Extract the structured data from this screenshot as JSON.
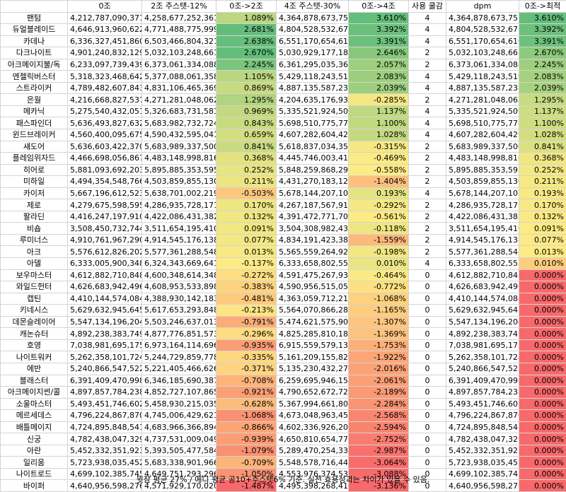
{
  "headers": [
    "",
    "0조",
    "2조 주스탯-12%",
    "0조->2조",
    "4조 주스탯-30%",
    "0조->4조",
    "사용 쿨감",
    "dpm",
    "0조->최적"
  ],
  "rows": [
    [
      "팬텀",
      "4,212,787,090,371",
      "4,258,677,252,361",
      "1.089%",
      "4,364,878,673,757",
      "3.610%",
      "4",
      "4,364,878,673,757",
      "3.610%"
    ],
    [
      "듀얼블레이드",
      "4,646,913,960,622",
      "4,771,488,775,999",
      "2.681%",
      "4,804,528,532,671",
      "3.392%",
      "4",
      "4,804,528,532,671",
      "3.392%"
    ],
    [
      "카데나",
      "6,336,327,451,860",
      "6,503,466,804,321",
      "2.638%",
      "6,551,170,654,610",
      "3.391%",
      "4",
      "6,551,170,654,610",
      "3.391%"
    ],
    [
      "다크나이트",
      "4,901,240,832,129",
      "5,032,103,248,661",
      "2.670%",
      "5,030,929,177,183",
      "2.646%",
      "2",
      "5,032,103,248,661",
      "2.670%"
    ],
    [
      "아크메이지불/독",
      "6,233,097,739,439",
      "6,373,061,334,088",
      "2.245%",
      "6,361,295,035,361",
      "2.057%",
      "2",
      "6,373,061,334,088",
      "2.245%"
    ],
    [
      "엔젤릭버스터",
      "5,318,323,468,642",
      "5,377,088,061,358",
      "1.105%",
      "5,429,118,243,519",
      "2.083%",
      "4",
      "5,429,118,243,519",
      "2.083%"
    ],
    [
      "스트라이커",
      "4,789,482,607,843",
      "4,831,106,465,369",
      "0.869%",
      "4,887,135,587,238",
      "2.039%",
      "4",
      "4,887,135,587,238",
      "2.039%"
    ],
    [
      "은월",
      "4,216,668,827,537",
      "4,271,281,048,062",
      "1.295%",
      "4,204,635,176,931",
      "-0.285%",
      "2",
      "4,271,281,048,062",
      "1.295%"
    ],
    [
      "메카닉",
      "5,275,540,432,051",
      "5,326,683,731,581",
      "0.969%",
      "5,335,521,924,509",
      "1.137%",
      "4",
      "5,335,521,924,509",
      "1.137%"
    ],
    [
      "패스파인더",
      "5,636,493,827,632",
      "5,683,982,732,724",
      "0.843%",
      "5,698,510,775,778",
      "1.100%",
      "4",
      "5,698,510,775,778",
      "1.100%"
    ],
    [
      "윈드브레이커",
      "4,560,400,095,675",
      "4,590,432,595,041",
      "0.659%",
      "4,607,282,604,429",
      "1.028%",
      "4",
      "4,607,282,604,429",
      "1.028%"
    ],
    [
      "섀도어",
      "5,636,603,422,370",
      "5,683,989,337,500",
      "0.841%",
      "5,618,837,034,354",
      "-0.315%",
      "2",
      "5,683,989,337,500",
      "0.841%"
    ],
    [
      "플레임위자드",
      "4,466,698,056,867",
      "4,483,148,998,816",
      "0.368%",
      "4,445,746,003,410",
      "-0.469%",
      "2",
      "4,483,148,998,816",
      "0.368%"
    ],
    [
      "히어로",
      "5,881,093,692,203",
      "5,895,885,353,595",
      "0.252%",
      "5,848,259,868,290",
      "-0.558%",
      "2",
      "5,895,885,353,595",
      "0.252%"
    ],
    [
      "미하일",
      "4,494,354,548,766",
      "4,503,859,855,130",
      "0.211%",
      "4,431,270,183,128",
      "-1.404%",
      "2",
      "4,503,859,855,130",
      "0.211%"
    ],
    [
      "카이저",
      "5,667,196,612,523",
      "5,638,701,002,219",
      "-0.503%",
      "5,678,144,207,107",
      "0.193%",
      "4",
      "5,678,144,207,107",
      "0.193%"
    ],
    [
      "제로",
      "4,279,675,598,595",
      "4,286,935,728,171",
      "0.170%",
      "4,267,187,567,916",
      "-0.292%",
      "2",
      "4,286,935,728,171",
      "0.170%"
    ],
    [
      "팔라딘",
      "4,416,247,197,910",
      "4,422,086,431,382",
      "0.132%",
      "4,391,472,771,709",
      "-0.561%",
      "2",
      "4,422,086,431,382",
      "0.132%"
    ],
    [
      "비숍",
      "3,508,450,732,744",
      "3,511,654,195,410",
      "0.091%",
      "3,504,308,982,437",
      "-0.118%",
      "2",
      "3,511,654,195,410",
      "0.091%"
    ],
    [
      "루미너스",
      "4,910,761,967,290",
      "4,914,545,176,138",
      "0.077%",
      "4,834,191,423,384",
      "-1.559%",
      "2",
      "4,914,545,176,138",
      "0.077%"
    ],
    [
      "아크",
      "5,576,612,826,202",
      "5,577,361,288,548",
      "0.013%",
      "5,565,559,264,921",
      "-0.198%",
      "2",
      "5,577,361,288,548",
      "0.013%"
    ],
    [
      "아델",
      "6,333,005,900,348",
      "6,324,343,669,641",
      "-0.137%",
      "6,333,658,802,555",
      "0.010%",
      "4",
      "6,333,658,802,555",
      "0.010%"
    ],
    [
      "보우마스터",
      "4,612,882,710,848",
      "4,600,348,614,348",
      "-0.272%",
      "4,591,475,267,934",
      "-0.464%",
      "0",
      "4,612,882,710,848",
      "0.000%"
    ],
    [
      "와일드헌터",
      "4,626,683,942,496",
      "4,608,953,533,898",
      "-0.383%",
      "4,590,956,515,051",
      "-0.772%",
      "0",
      "4,626,683,942,496",
      "0.000%"
    ],
    [
      "캡틴",
      "4,410,144,574,084",
      "4,388,930,142,183",
      "-0.481%",
      "4,363,059,712,211",
      "-1.068%",
      "0",
      "4,410,144,574,084",
      "0.000%"
    ],
    [
      "키네시스",
      "5,629,632,945,645",
      "5,617,653,293,848",
      "-0.213%",
      "5,564,070,866,282",
      "-1.165%",
      "0",
      "5,629,632,945,645",
      "0.000%"
    ],
    [
      "데몬슬레이어",
      "5,547,134,196,204",
      "5,503,246,637,013",
      "-0.791%",
      "5,474,621,575,907",
      "-1.307%",
      "0",
      "5,547,134,196,204",
      "0.000%"
    ],
    [
      "캐논슈터",
      "4,892,238,383,749",
      "4,877,776,851,573",
      "-0.296%",
      "4,825,285,810,185",
      "-1.369%",
      "0",
      "4,892,238,383,749",
      "0.000%"
    ],
    [
      "호영",
      "7,038,981,695,175",
      "6,973,164,114,696",
      "-0.935%",
      "6,915,559,579,139",
      "-1.753%",
      "0",
      "7,038,981,695,175",
      "0.000%"
    ],
    [
      "나이트워커",
      "5,262,358,101,724",
      "5,244,729,859,778",
      "-0.335%",
      "5,161,209,155,825",
      "-1.922%",
      "0",
      "5,262,358,101,724",
      "0.000%"
    ],
    [
      "에반",
      "5,240,866,547,522",
      "5,221,405,466,626",
      "-0.371%",
      "5,135,230,432,274",
      "-2.016%",
      "0",
      "5,240,866,547,522",
      "0.000%"
    ],
    [
      "블래스터",
      "6,391,409,470,998",
      "6,346,185,690,387",
      "-0.708%",
      "6,259,695,946,152",
      "-2.061%",
      "0",
      "6,391,409,470,998",
      "0.000%"
    ],
    [
      "아크메이지썬/콜",
      "4,897,857,784,238",
      "4,852,727,107,865",
      "-0.921%",
      "4,790,652,672,725",
      "-2.189%",
      "0",
      "4,897,857,784,238",
      "0.000%"
    ],
    [
      "소울마스터",
      "5,493,451,746,602",
      "5,458,930,215,035",
      "-0.628%",
      "5,367,994,661,803",
      "-2.284%",
      "0",
      "5,493,451,746,602",
      "0.000%"
    ],
    [
      "메르세데스",
      "4,796,224,867,870",
      "4,745,006,429,621",
      "-1.068%",
      "4,673,048,963,458",
      "-2.568%",
      "0",
      "4,796,224,867,870",
      "0.000%"
    ],
    [
      "배틀메이지",
      "4,724,895,848,541",
      "4,683,966,366,894",
      "-0.866%",
      "4,602,336,926,201",
      "-2.594%",
      "0",
      "4,724,895,848,541",
      "0.000%"
    ],
    [
      "신궁",
      "4,782,438,047,329",
      "4,737,531,009,049",
      "-0.939%",
      "4,650,810,654,771",
      "-2.752%",
      "0",
      "4,782,438,047,329",
      "0.000%"
    ],
    [
      "아란",
      "5,452,332,351,923",
      "5,393,505,477,584",
      "-1.079%",
      "5,289,470,254,334",
      "-2.987%",
      "0",
      "5,452,332,351,923",
      "0.000%"
    ],
    [
      "일리움",
      "5,723,938,035,452",
      "5,683,338,901,966",
      "-0.709%",
      "5,548,578,716,440",
      "-3.064%",
      "0",
      "5,723,938,035,452",
      "0.000%"
    ],
    [
      "나이트로드",
      "4,699,102,385,745",
      "4,649,751,293,296",
      "-1.050%",
      "4,553,976,374,535",
      "-3.088%",
      "0",
      "4,699,102,385,745",
      "0.000%"
    ],
    [
      "바이퍼",
      "4,640,956,598,276",
      "4,571,929,170,020",
      "-1.487%",
      "4,495,398,268,412",
      "-3.136%",
      "0",
      "4,640,956,598,276",
      "0.000%"
    ]
  ],
  "footer": "윗잠 평균 27% / 에디 평균 공10+주스탯6% 기준. 실전 효용성과는 차이가 있을 수 있음.",
  "colors": {
    "grid": "#d4d4d4",
    "scale_low": "#f8696b",
    "scale_mid": "#ffeb84",
    "scale_high": "#63be7b"
  }
}
